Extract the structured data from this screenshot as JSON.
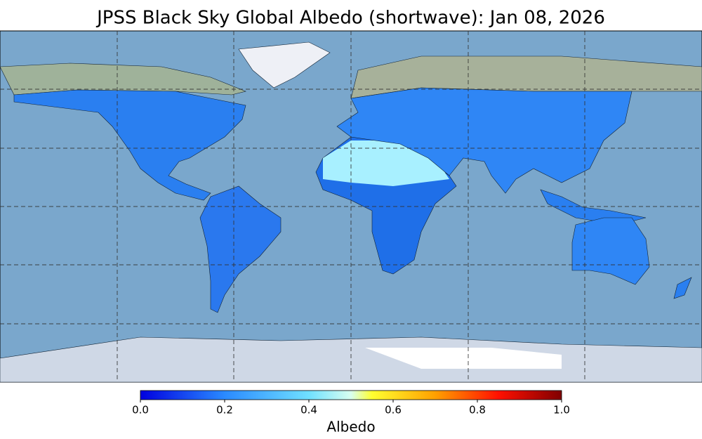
{
  "title": "JPSS Black Sky Global Albedo (shortwave): Jan 08, 2026",
  "colorbar": {
    "label": "Albedo",
    "lim": [
      0,
      1
    ],
    "ticks": [
      {
        "value": 0,
        "label": "0.0"
      },
      {
        "value": 0.2,
        "label": "0.2"
      },
      {
        "value": 0.4,
        "label": "0.4"
      },
      {
        "value": 0.6,
        "label": "0.6"
      },
      {
        "value": 0.8,
        "label": "0.8"
      },
      {
        "value": 1,
        "label": "1.0"
      }
    ]
  }
}
